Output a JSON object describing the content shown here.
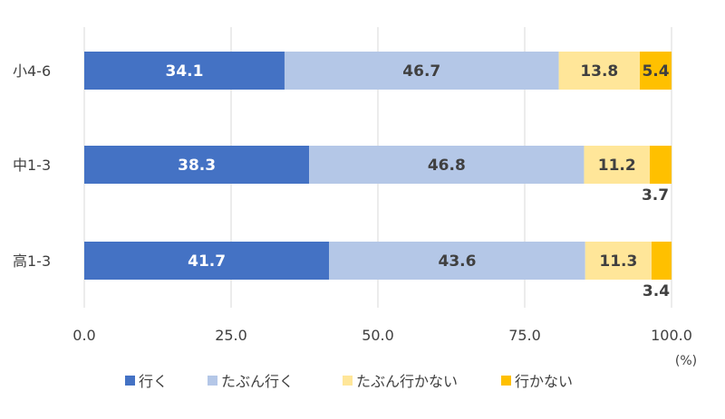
{
  "chart_data": {
    "type": "bar",
    "orientation": "horizontal",
    "stacked": true,
    "categories": [
      "小4-6",
      "中1-3",
      "高1-3"
    ],
    "series": [
      {
        "name": "行く",
        "color": "#4472C4",
        "values": [
          34.1,
          38.3,
          41.7
        ]
      },
      {
        "name": "たぶん行く",
        "color": "#B4C7E7",
        "values": [
          46.7,
          46.8,
          43.6
        ]
      },
      {
        "name": "たぶん行かない",
        "color": "#FFE699",
        "values": [
          13.8,
          11.2,
          11.3
        ]
      },
      {
        "name": "行かない",
        "color": "#FFC000",
        "values": [
          5.4,
          3.7,
          3.4
        ]
      }
    ],
    "xlim": [
      0,
      100
    ],
    "xticks": [
      "0.0",
      "25.0",
      "50.0",
      "75.0",
      "100.0"
    ],
    "xunit": "(%)",
    "grid": true,
    "legend": "bottom"
  }
}
